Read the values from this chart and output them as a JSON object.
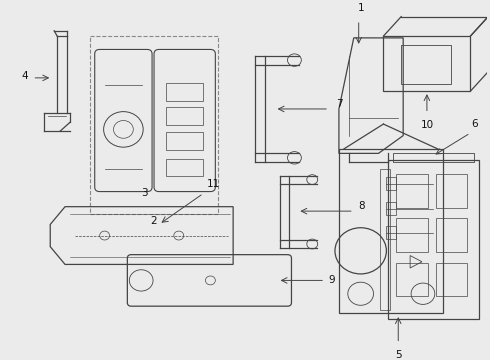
{
  "bg_color": "#ebebeb",
  "line_color": "#444444",
  "label_color": "#111111",
  "parts": [
    {
      "id": 4
    },
    {
      "id": 2
    },
    {
      "id": 3
    },
    {
      "id": 7
    },
    {
      "id": 1
    },
    {
      "id": 10
    },
    {
      "id": 8
    },
    {
      "id": 6
    },
    {
      "id": 11
    },
    {
      "id": 9
    },
    {
      "id": 5
    }
  ]
}
